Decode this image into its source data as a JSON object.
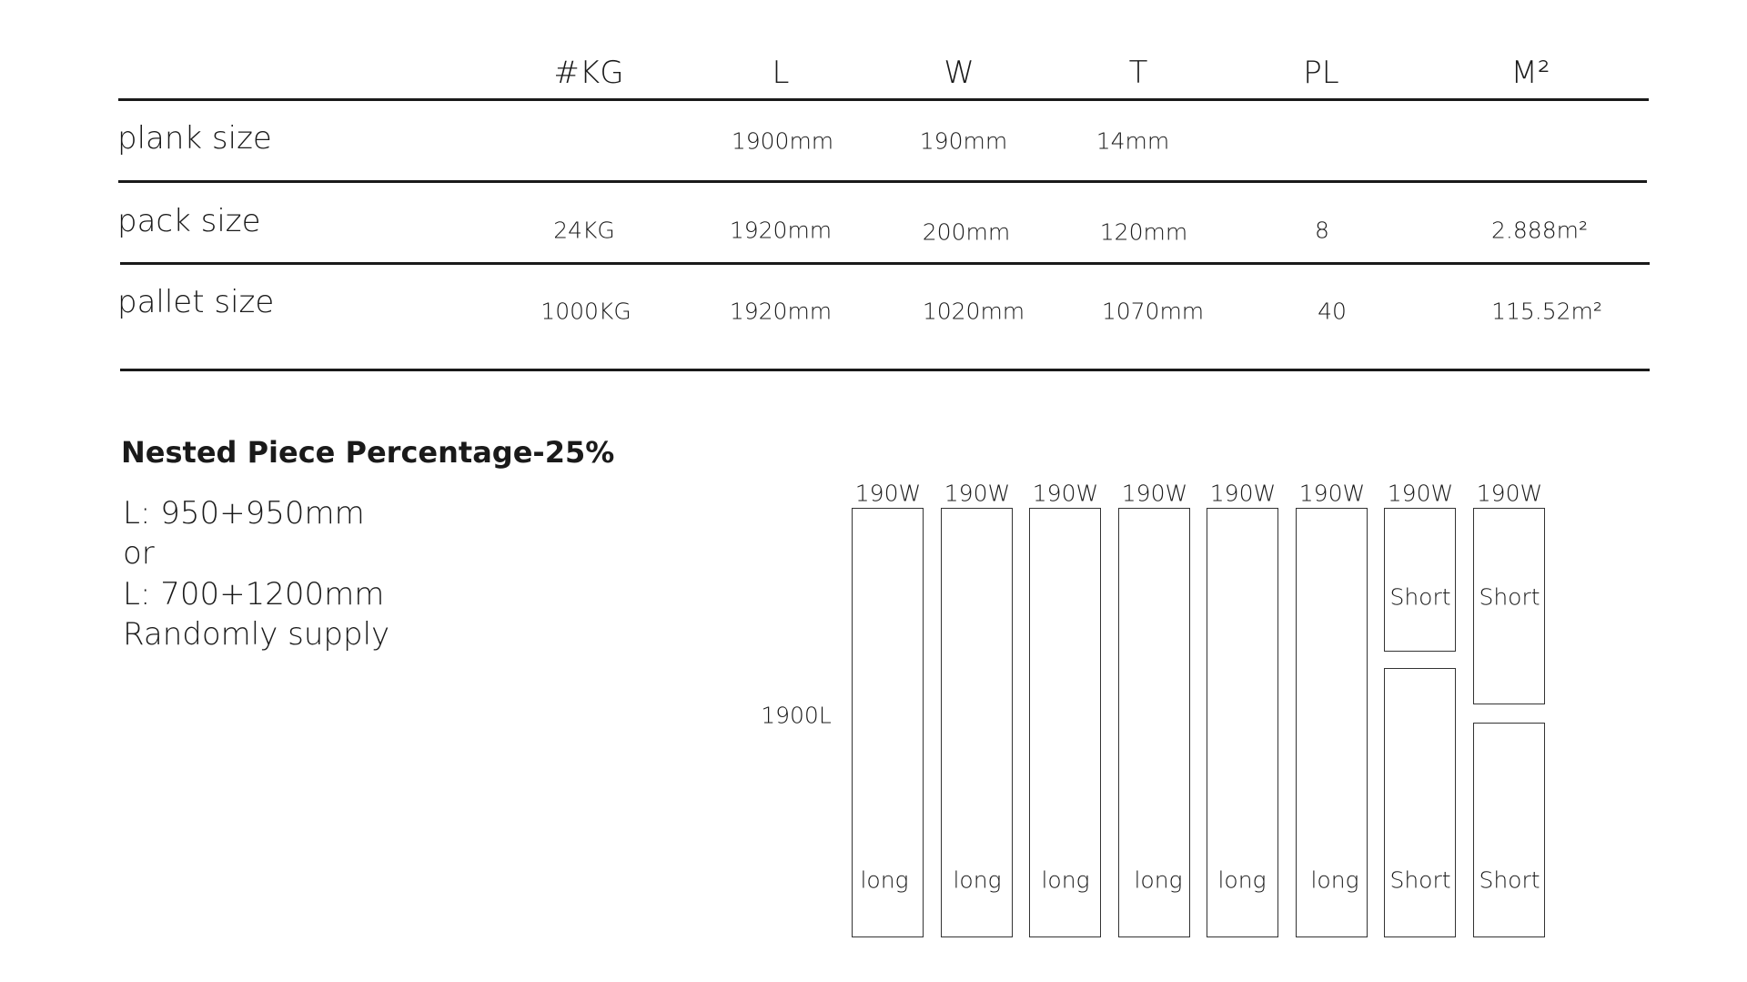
{
  "table": {
    "headers": [
      "#KG",
      "L",
      "W",
      "T",
      "PL",
      "M²"
    ],
    "rows": [
      {
        "label": "plank size",
        "values": [
          "",
          "1900mm",
          "190mm",
          "14mm",
          "",
          ""
        ]
      },
      {
        "label": "pack size",
        "values": [
          "24KG",
          "1920mm",
          "200mm",
          "120mm",
          "8",
          "2.888m²"
        ]
      },
      {
        "label": "pallet size",
        "values": [
          "1000KG",
          "1920mm",
          "1020mm",
          "1070mm",
          "40",
          "115.52m²"
        ]
      }
    ]
  },
  "nested": {
    "title": "Nested Piece Percentage-25%",
    "lines": [
      "L: 950+950mm",
      "or",
      "L: 700+1200mm",
      "Randomly supply"
    ]
  },
  "diagram": {
    "length_label": "1900L",
    "width_labels": [
      "190W",
      "190W",
      "190W",
      "190W",
      "190W",
      "190W",
      "190W",
      "190W"
    ],
    "long_label": "long",
    "short_label": "Short"
  }
}
